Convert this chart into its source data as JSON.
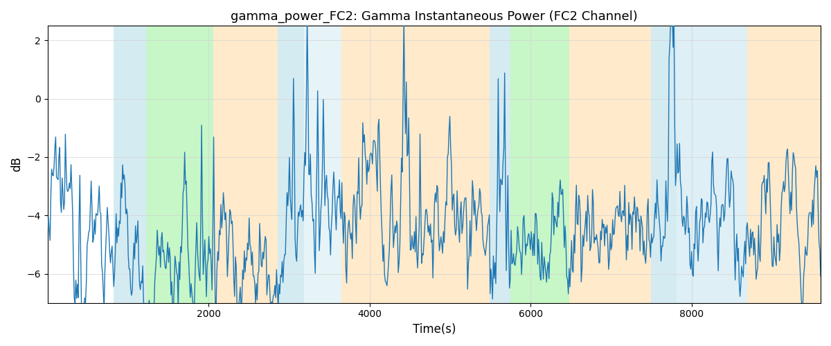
{
  "title": "gamma_power_FC2: Gamma Instantaneous Power (FC2 Channel)",
  "xlabel": "Time(s)",
  "ylabel": "dB",
  "xlim": [
    0,
    9600
  ],
  "ylim": [
    -7,
    2.5
  ],
  "line_color": "#1f77b4",
  "line_width": 1.0,
  "yticks": [
    2,
    0,
    -2,
    -4,
    -6
  ],
  "xticks": [
    2000,
    4000,
    6000,
    8000
  ],
  "background_regions": [
    {
      "xmin": 820,
      "xmax": 1220,
      "color": "#add8e6",
      "alpha": 0.5
    },
    {
      "xmin": 1220,
      "xmax": 2060,
      "color": "#90ee90",
      "alpha": 0.5
    },
    {
      "xmin": 2060,
      "xmax": 2860,
      "color": "#ffd699",
      "alpha": 0.5
    },
    {
      "xmin": 2860,
      "xmax": 3180,
      "color": "#add8e6",
      "alpha": 0.5
    },
    {
      "xmin": 3180,
      "xmax": 3650,
      "color": "#add8e6",
      "alpha": 0.3
    },
    {
      "xmin": 3650,
      "xmax": 5490,
      "color": "#ffd699",
      "alpha": 0.5
    },
    {
      "xmin": 5490,
      "xmax": 5750,
      "color": "#add8e6",
      "alpha": 0.5
    },
    {
      "xmin": 5750,
      "xmax": 6480,
      "color": "#90ee90",
      "alpha": 0.5
    },
    {
      "xmin": 6480,
      "xmax": 7490,
      "color": "#ffd699",
      "alpha": 0.5
    },
    {
      "xmin": 7490,
      "xmax": 7810,
      "color": "#add8e6",
      "alpha": 0.5
    },
    {
      "xmin": 7810,
      "xmax": 8690,
      "color": "#add8e6",
      "alpha": 0.4
    },
    {
      "xmin": 8690,
      "xmax": 9600,
      "color": "#ffd699",
      "alpha": 0.5
    }
  ],
  "seed": 12345,
  "n_points": 960
}
